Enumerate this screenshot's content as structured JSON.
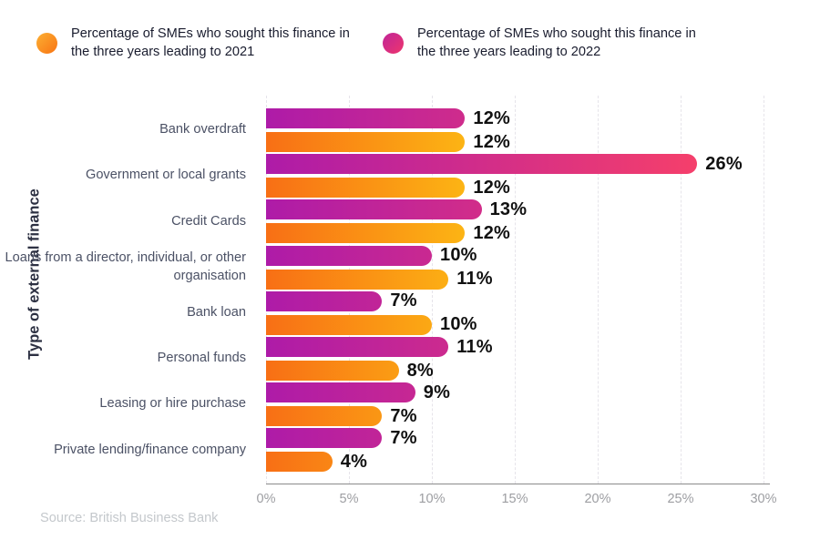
{
  "legend": {
    "items": [
      {
        "id": "2021",
        "label": "Percentage of SMEs who sought this finance in the three years leading to 2021",
        "dot_gradient": [
          "#fcaf33",
          "#f87413"
        ]
      },
      {
        "id": "2022",
        "label": "Percentage of SMEs who sought this finance in the three years leading to 2022",
        "dot_gradient": [
          "#c02598",
          "#ee356d"
        ]
      }
    ]
  },
  "chart_data": {
    "type": "bar",
    "orientation": "horizontal",
    "title": "",
    "xlabel": "",
    "ylabel": "Type of external finance",
    "categories": [
      "Bank overdraft",
      "Government or local grants",
      "Credit Cards",
      "Loans from a director, individual, or other organisation",
      "Bank loan",
      "Personal funds",
      "Leasing or hire purchase",
      "Private lending/finance company"
    ],
    "series": [
      {
        "name": "Percentage of SMEs who sought this finance in the three years leading to 2022",
        "short": "2022",
        "values": [
          12,
          26,
          13,
          10,
          7,
          11,
          9,
          7
        ],
        "gradient": [
          "#ae1ba8",
          "#f53f6b"
        ]
      },
      {
        "name": "Percentage of SMEs who sought this finance in the three years leading to 2021",
        "short": "2021",
        "values": [
          12,
          12,
          12,
          11,
          10,
          8,
          7,
          4
        ],
        "gradient": [
          "#f86f15",
          "#fcb414"
        ]
      }
    ],
    "xlim": [
      0,
      30
    ],
    "xticks": [
      {
        "value": 0,
        "label": "0%"
      },
      {
        "value": 5,
        "label": "5%"
      },
      {
        "value": 10,
        "label": "10%"
      },
      {
        "value": 15,
        "label": "15%"
      },
      {
        "value": 20,
        "label": "20%"
      },
      {
        "value": 25,
        "label": "25%"
      },
      {
        "value": 30,
        "label": "30%"
      }
    ],
    "value_label_suffix": "%",
    "grid": {
      "style": "dashed-vertical",
      "color": "#e6e4ea"
    },
    "legend_position": "top",
    "axis_line_color": "#8b8b8b"
  },
  "source": "Source: British Business Bank"
}
